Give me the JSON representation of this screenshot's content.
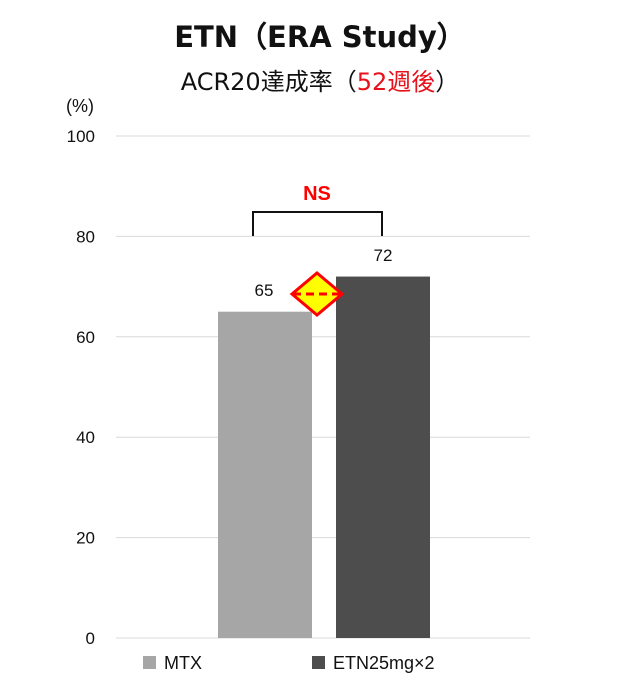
{
  "chart_data": {
    "type": "bar",
    "title": "ETN（ERA Study）",
    "subtitle": {
      "prefix": "ACR20達成率（",
      "highlight": "52週後",
      "suffix": "）"
    },
    "y_unit_label": "(%)",
    "ylim": [
      0,
      100
    ],
    "yticks": [
      0,
      20,
      40,
      60,
      80,
      100
    ],
    "grid": true,
    "categories": [
      "MTX",
      "ETN25mg×2"
    ],
    "values": [
      65,
      72
    ],
    "data_labels": [
      "65",
      "72"
    ],
    "legend": {
      "position": "bottom",
      "entries": [
        "MTX",
        "ETN25mg×2"
      ]
    },
    "significance": {
      "label": "NS",
      "between": [
        "MTX",
        "ETN25mg×2"
      ]
    },
    "colors": {
      "MTX": "#a6a6a6",
      "ETN25mg×2": "#4d4d4d",
      "significance_text": "#ff0000",
      "diamond_fill": "#ffff00",
      "diamond_stroke": "#ff0000",
      "gridline": "#d9d9d9"
    }
  }
}
